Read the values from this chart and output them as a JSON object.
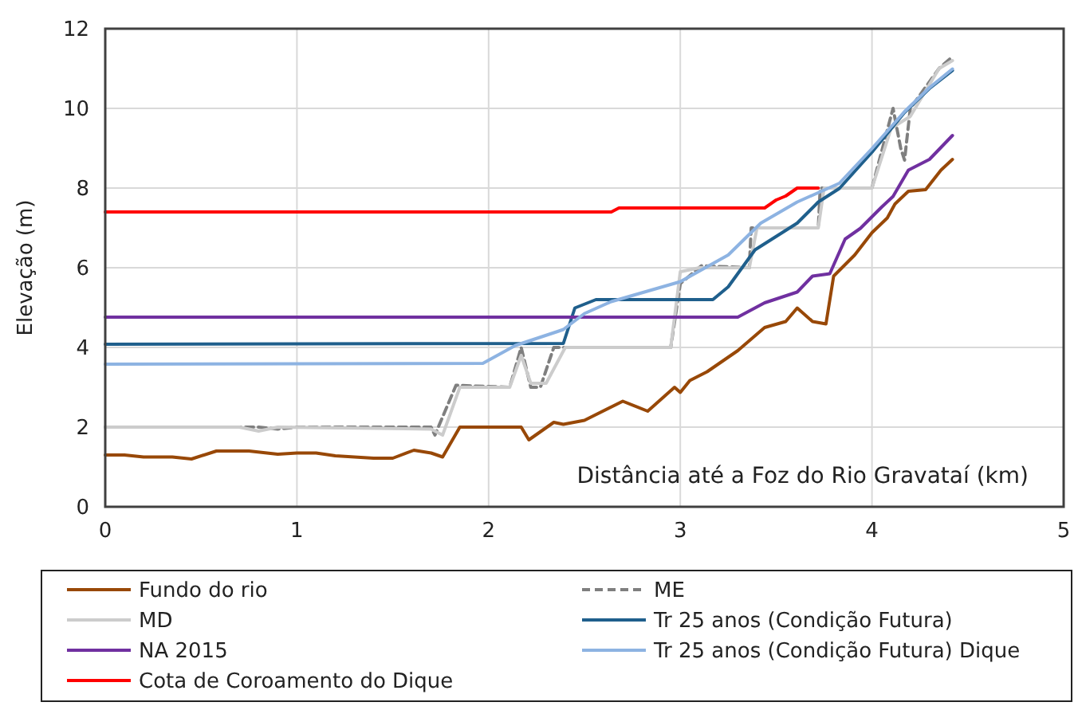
{
  "chart_data": {
    "type": "line",
    "xlabel": "Distância até a Foz do Rio Gravataí (km)",
    "ylabel": "Elevação (m)",
    "xlim": [
      0,
      5
    ],
    "xticks": [
      0,
      1,
      2,
      3,
      4,
      5
    ],
    "ylim": [
      0,
      12
    ],
    "yticks": [
      0,
      2,
      4,
      6,
      8,
      10,
      12
    ],
    "grid": true,
    "legend": "bottom",
    "marker": "none",
    "series": [
      {
        "name": "Fundo do rio",
        "color": "#984807",
        "x": [
          0,
          0.1,
          0.2,
          0.35,
          0.45,
          0.58,
          0.75,
          0.9,
          1.0,
          1.1,
          1.2,
          1.4,
          1.5,
          1.61,
          1.7,
          1.76,
          1.85,
          2.17,
          2.21,
          2.34,
          2.39,
          2.5,
          2.7,
          2.83,
          2.97,
          3.0,
          3.05,
          3.14,
          3.3,
          3.44,
          3.55,
          3.61,
          3.69,
          3.76,
          3.8,
          3.91,
          4.0,
          4.08,
          4.12,
          4.19,
          4.28,
          4.36,
          4.42
        ],
        "values": [
          1.3,
          1.3,
          1.25,
          1.25,
          1.2,
          1.4,
          1.4,
          1.32,
          1.35,
          1.35,
          1.28,
          1.22,
          1.22,
          1.42,
          1.35,
          1.25,
          2.0,
          2.0,
          1.68,
          2.12,
          2.07,
          2.17,
          2.65,
          2.4,
          3.0,
          2.87,
          3.17,
          3.39,
          3.92,
          4.5,
          4.65,
          4.99,
          4.65,
          4.59,
          5.79,
          6.32,
          6.88,
          7.25,
          7.6,
          7.92,
          7.96,
          8.45,
          8.72
        ]
      },
      {
        "name": "ME",
        "color": "#7f7f7f",
        "line_style": "dashed",
        "x": [
          0,
          0.8,
          0.9,
          1.0,
          1.7,
          1.72,
          1.83,
          2.11,
          2.17,
          2.22,
          2.27,
          2.34,
          2.39,
          2.95,
          3.0,
          3.11,
          3.36,
          3.37,
          3.72,
          3.73,
          4.0,
          4.11,
          4.15,
          4.17,
          4.2,
          4.35,
          4.42
        ],
        "values": [
          2.0,
          2.0,
          1.95,
          2.0,
          2.0,
          1.8,
          3.05,
          3.0,
          4.0,
          3.0,
          3.0,
          4.0,
          4.0,
          4.0,
          5.6,
          6.05,
          6.0,
          7.0,
          7.0,
          8.0,
          8.0,
          10.0,
          9.0,
          8.7,
          10.0,
          11.0,
          11.3
        ]
      },
      {
        "name": "MD",
        "color": "#cccccc",
        "x": [
          0,
          0.7,
          0.8,
          0.9,
          1.7,
          1.76,
          1.85,
          2.11,
          2.17,
          2.22,
          2.3,
          2.4,
          2.95,
          3.0,
          3.1,
          3.36,
          3.4,
          3.72,
          3.75,
          4.0,
          4.1,
          4.2,
          4.35,
          4.42
        ],
        "values": [
          2.0,
          2.0,
          1.9,
          2.0,
          1.95,
          1.8,
          3.0,
          3.0,
          3.8,
          3.1,
          3.1,
          4.0,
          4.0,
          5.9,
          6.0,
          6.0,
          7.0,
          7.0,
          8.0,
          8.0,
          9.5,
          9.8,
          11.0,
          11.2
        ]
      },
      {
        "name": "Tr 25 anos (Condição Futura)",
        "color": "#1f5f8c",
        "x": [
          0,
          2.39,
          2.45,
          2.56,
          3.17,
          3.25,
          3.39,
          3.61,
          3.72,
          3.83,
          4.0,
          4.17,
          4.3,
          4.42
        ],
        "values": [
          4.08,
          4.1,
          4.99,
          5.2,
          5.2,
          5.52,
          6.45,
          7.12,
          7.65,
          7.99,
          8.9,
          9.9,
          10.5,
          10.95
        ]
      },
      {
        "name": "NA 2015",
        "color": "#7030a0",
        "x": [
          0,
          3.3,
          3.44,
          3.61,
          3.69,
          3.78,
          3.86,
          3.94,
          4.05,
          4.11,
          4.19,
          4.3,
          4.42
        ],
        "values": [
          4.76,
          4.76,
          5.12,
          5.39,
          5.79,
          5.85,
          6.72,
          6.99,
          7.52,
          7.79,
          8.45,
          8.72,
          9.32
        ]
      },
      {
        "name": "Tr 25 anos (Condição Futura) Dique",
        "color": "#8db3e2",
        "x": [
          0,
          1.97,
          2.14,
          2.36,
          2.39,
          2.5,
          2.64,
          3.0,
          3.25,
          3.42,
          3.61,
          3.83,
          4.0,
          4.17,
          4.3,
          4.42
        ],
        "values": [
          3.58,
          3.6,
          4.05,
          4.4,
          4.45,
          4.85,
          5.15,
          5.65,
          6.32,
          7.12,
          7.65,
          8.12,
          8.99,
          9.92,
          10.52,
          10.99
        ]
      },
      {
        "name": "Cota de Coroamento do Dique",
        "color": "#ff0000",
        "x": [
          0,
          2.64,
          2.68,
          3.44,
          3.5,
          3.55,
          3.61,
          3.72
        ],
        "values": [
          7.4,
          7.4,
          7.5,
          7.5,
          7.7,
          7.8,
          8.0,
          8.0
        ]
      }
    ]
  }
}
